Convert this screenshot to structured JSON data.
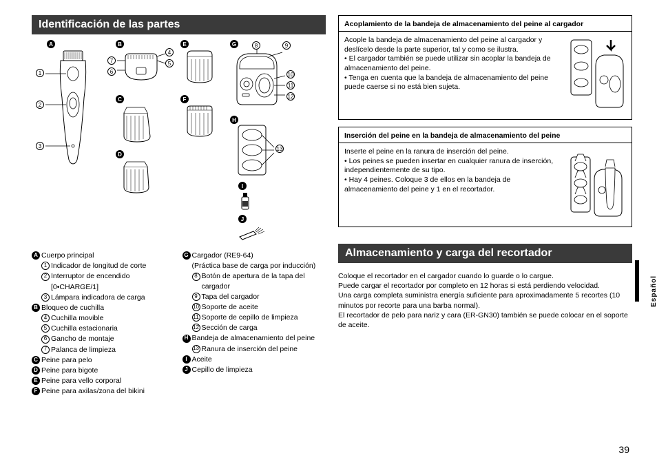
{
  "page": {
    "number": "39",
    "language_tab": "Español"
  },
  "colors": {
    "header_bg": "#3a3a3a",
    "header_text": "#ffffff",
    "page_bg": "#ffffff",
    "text": "#000000",
    "box_border": "#000000"
  },
  "fonts": {
    "body_size_pt": 10.5,
    "header_size_pt": 16
  },
  "left": {
    "header": "Identificación de las partes",
    "badges": {
      "black": [
        "A",
        "B",
        "C",
        "D",
        "E",
        "F",
        "G",
        "H",
        "I",
        "J"
      ],
      "white": [
        "1",
        "2",
        "3",
        "4",
        "5",
        "6",
        "7",
        "8",
        "9",
        "10",
        "11",
        "12",
        "13"
      ]
    },
    "list_col1": [
      {
        "type": "black",
        "mark": "A",
        "text": "Cuerpo principal"
      },
      {
        "type": "white",
        "mark": "1",
        "text": "Indicador de longitud de corte",
        "indent": 1
      },
      {
        "type": "white",
        "mark": "2",
        "text": "Interruptor de encendido",
        "indent": 1
      },
      {
        "type": "plain",
        "text": "[0•CHARGE/1]",
        "indent": 2
      },
      {
        "type": "white",
        "mark": "3",
        "text": "Lámpara indicadora de carga",
        "indent": 1
      },
      {
        "type": "black",
        "mark": "B",
        "text": "Bloqueo de cuchilla"
      },
      {
        "type": "white",
        "mark": "4",
        "text": "Cuchilla movible",
        "indent": 1
      },
      {
        "type": "white",
        "mark": "5",
        "text": "Cuchilla estacionaria",
        "indent": 1
      },
      {
        "type": "white",
        "mark": "6",
        "text": "Gancho de montaje",
        "indent": 1
      },
      {
        "type": "white",
        "mark": "7",
        "text": "Palanca de limpieza",
        "indent": 1
      },
      {
        "type": "black",
        "mark": "C",
        "text": "Peine para pelo"
      },
      {
        "type": "black",
        "mark": "D",
        "text": "Peine para bigote"
      },
      {
        "type": "black",
        "mark": "E",
        "text": "Peine para vello corporal"
      },
      {
        "type": "black",
        "mark": "F",
        "text": "Peine para axilas/zona del bikini"
      }
    ],
    "list_col2": [
      {
        "type": "black",
        "mark": "G",
        "text": "Cargador (RE9-64)"
      },
      {
        "type": "plain",
        "text": "(Práctica base de carga por inducción)",
        "indent": 1
      },
      {
        "type": "white",
        "mark": "8",
        "text": "Botón de apertura de la tapa del cargador",
        "indent": 1
      },
      {
        "type": "white",
        "mark": "9",
        "text": "Tapa del cargador",
        "indent": 1
      },
      {
        "type": "white",
        "mark": "10",
        "text": "Soporte de aceite",
        "indent": 1
      },
      {
        "type": "white",
        "mark": "11",
        "text": "Soporte de cepillo de limpieza",
        "indent": 1
      },
      {
        "type": "white",
        "mark": "12",
        "text": "Sección de carga",
        "indent": 1
      },
      {
        "type": "black",
        "mark": "H",
        "text": "Bandeja de almacenamiento del peine"
      },
      {
        "type": "white",
        "mark": "13",
        "text": "Ranura de inserción del peine",
        "indent": 1
      },
      {
        "type": "black",
        "mark": "I",
        "text": "Aceite"
      },
      {
        "type": "black",
        "mark": "J",
        "text": "Cepillo de limpieza"
      }
    ]
  },
  "right": {
    "box1": {
      "title": "Acoplamiento de la bandeja de almacenamiento del peine al cargador",
      "lead": "Acople la bandeja de almacenamiento del peine al cargador y deslícelo desde la parte superior, tal y como se ilustra.",
      "bullets": [
        "El cargador también se puede utilizar sin acoplar la bandeja de almacenamiento del peine.",
        "Tenga en cuenta que la bandeja de almacenamiento del peine puede caerse si no está bien sujeta."
      ]
    },
    "box2": {
      "title": "Inserción del peine en la bandeja de almacenamiento del peine",
      "lead": "Inserte el peine en la ranura de inserción del peine.",
      "bullets": [
        "Los peines se pueden insertar en cualquier ranura de inserción, independientemente de su tipo.",
        "Hay 4 peines. Coloque 3 de ellos en la bandeja de almacenamiento del peine y 1 en el recortador."
      ]
    },
    "section2_header": "Almacenamiento y carga del recortador",
    "section2_body": [
      "Coloque el recortador en el cargador cuando lo guarde o lo cargue.",
      "Puede cargar el recortador por completo en 12 horas si está perdiendo velocidad.",
      "Una carga completa suministra energía suficiente para aproximadamente 5 recortes (10 minutos por recorte para una barba normal).",
      "El recortador de pelo para nariz y cara (ER-GN30) también se puede colocar en el soporte de aceite."
    ]
  }
}
